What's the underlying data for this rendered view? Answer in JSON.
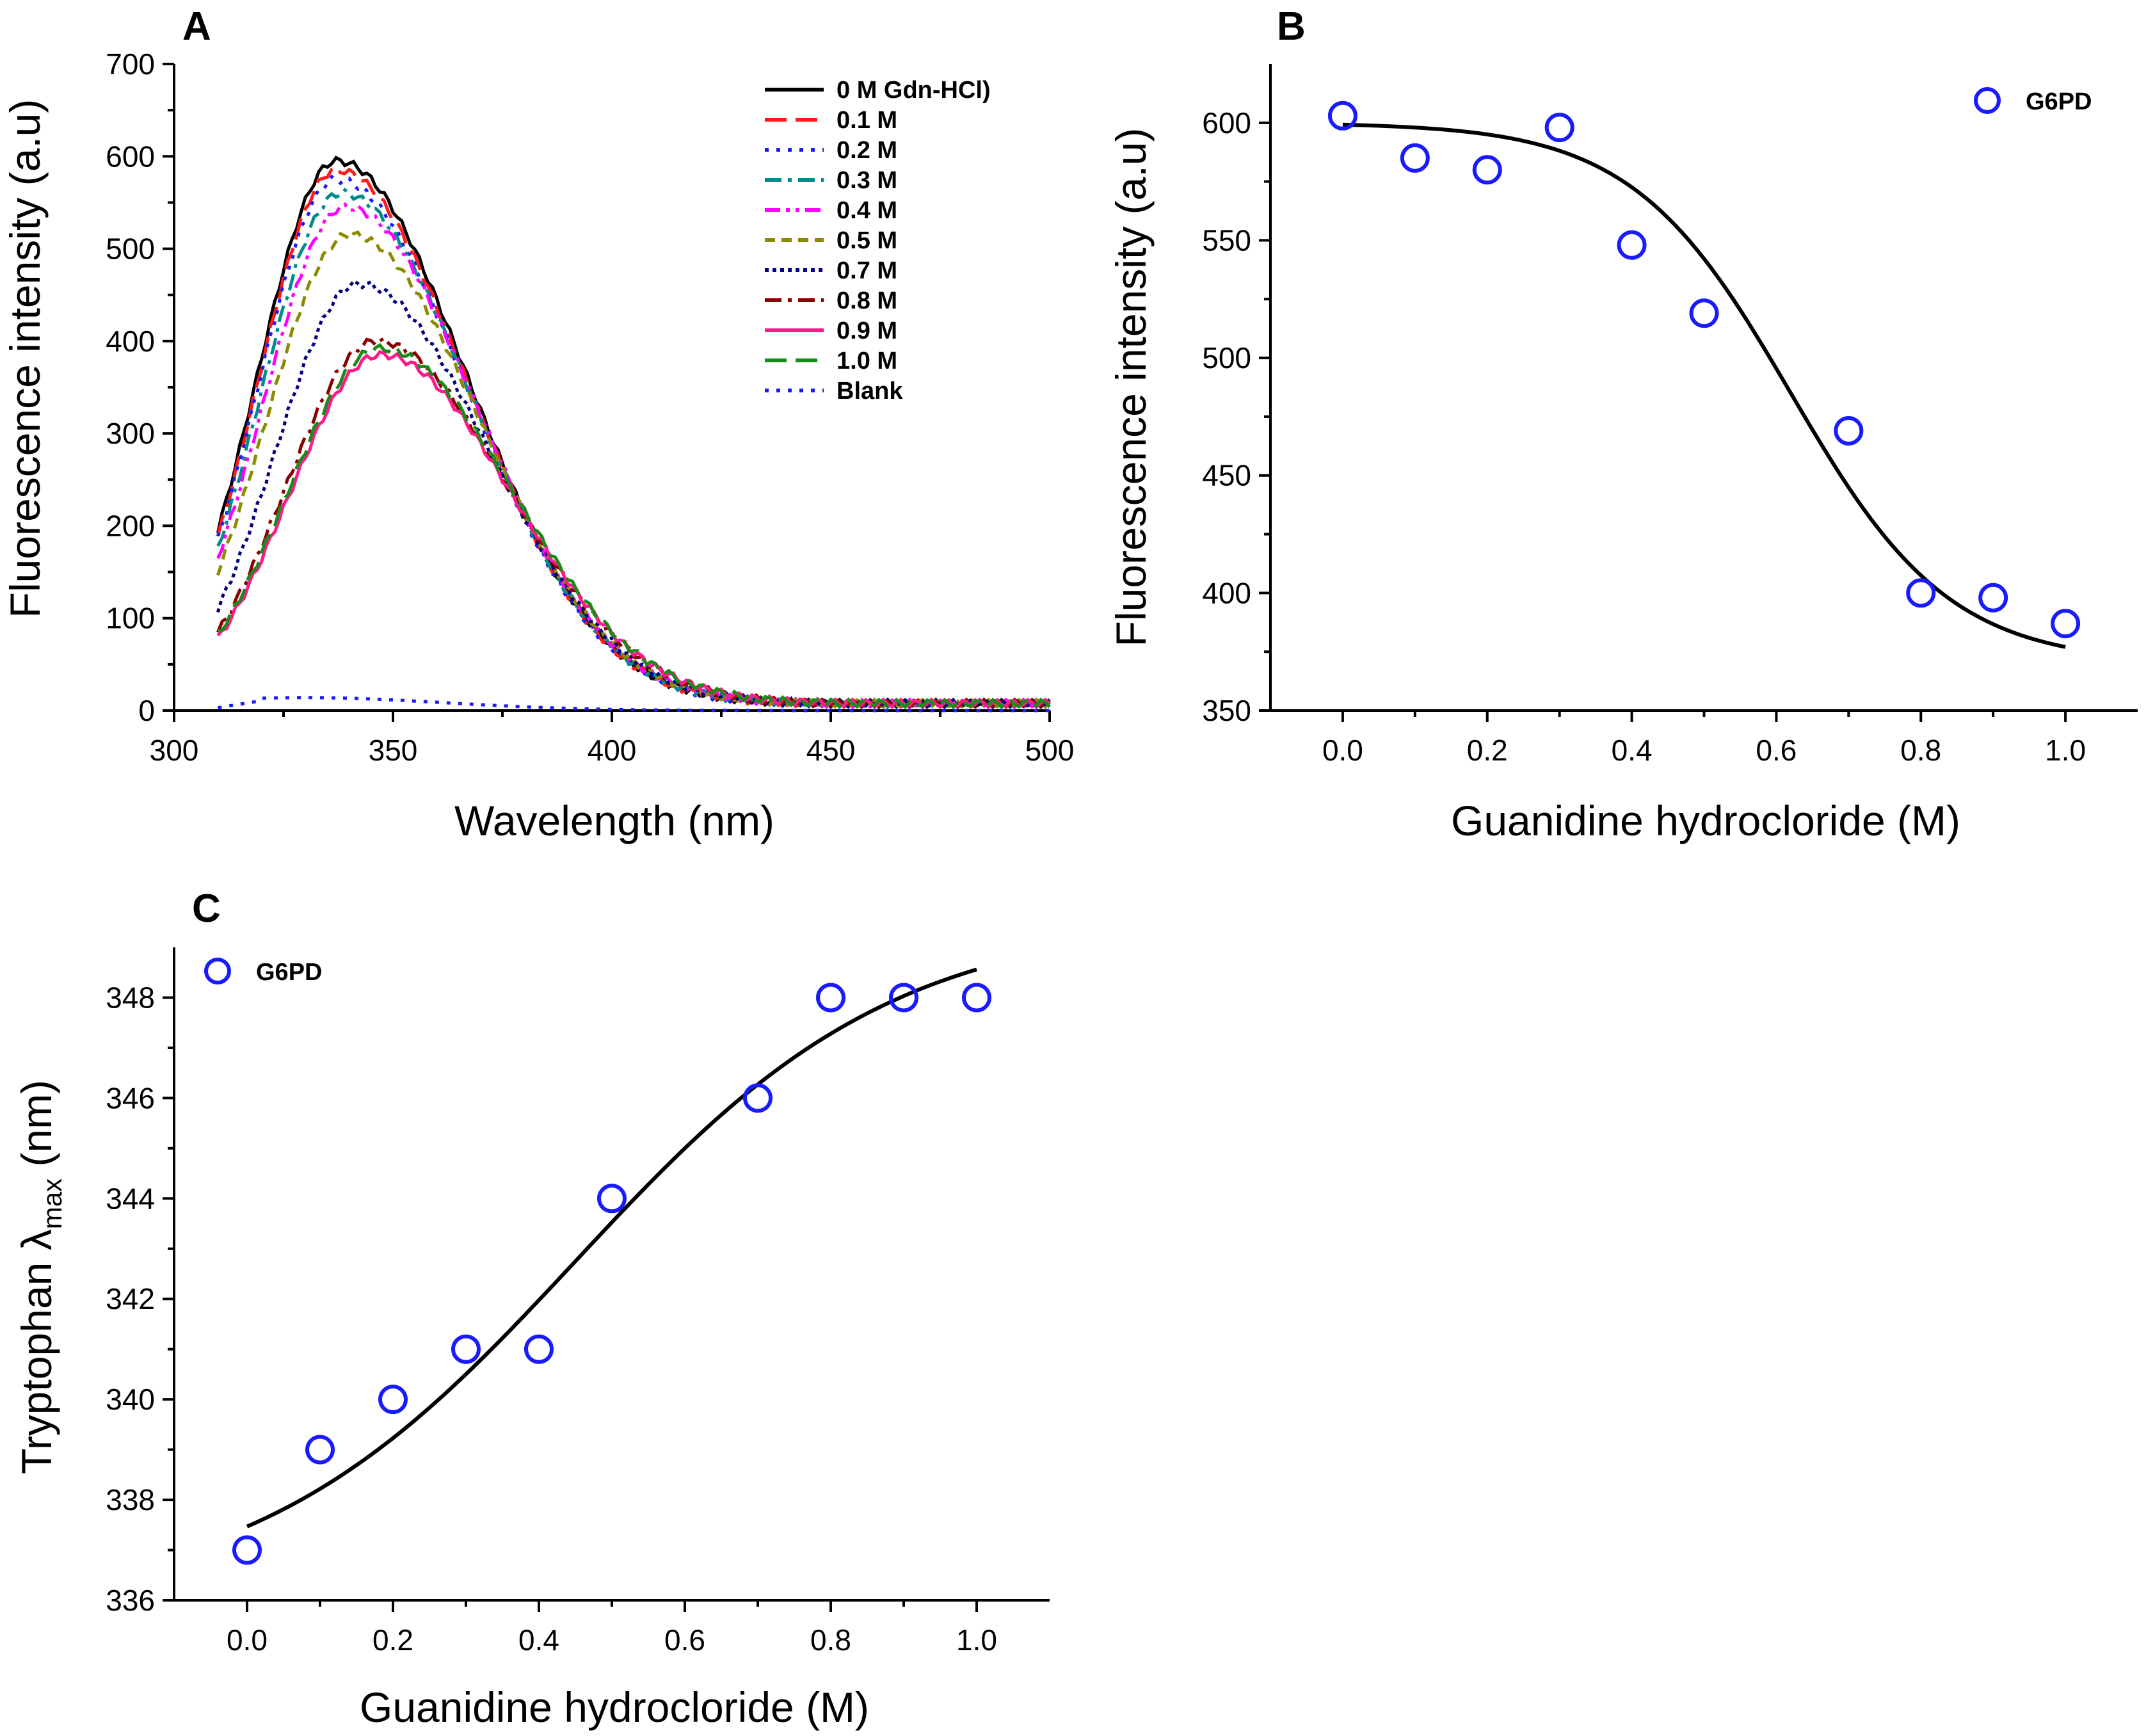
{
  "colors": {
    "axis": "#000000",
    "marker": "#1a1aff",
    "fit": "#000000"
  },
  "chart_data": [
    {
      "panel": "A",
      "type": "line",
      "title": "",
      "xlabel": "Wavelength (nm)",
      "ylabel": "Fluorescence intensity (a.u)",
      "xlim": [
        300,
        500
      ],
      "ylim": [
        0,
        700
      ],
      "xticks": [
        300,
        350,
        400,
        450,
        500
      ],
      "yticks": [
        0,
        100,
        200,
        300,
        400,
        500,
        600,
        700
      ],
      "xtick_labels": [
        "300",
        "350",
        "400",
        "450",
        "500"
      ],
      "ytick_labels": [
        "0",
        "100",
        "200",
        "300",
        "400",
        "500",
        "600",
        "700"
      ],
      "legend_position": "top-right",
      "series": [
        {
          "name": "0 M Gdn-HCl)",
          "color": "#000000",
          "dash": "solid",
          "start": 195,
          "peak": 595,
          "peak_x": 337
        },
        {
          "name": "0.1 M",
          "color": "#ff1a1a",
          "dash": "long-dash",
          "start": 188,
          "peak": 585,
          "peak_x": 337
        },
        {
          "name": "0.2 M",
          "color": "#1a1aff",
          "dash": "dot",
          "start": 185,
          "peak": 575,
          "peak_x": 337
        },
        {
          "name": "0.3 M",
          "color": "#008b8b",
          "dash": "dash-dot",
          "start": 175,
          "peak": 560,
          "peak_x": 338
        },
        {
          "name": "0.4 M",
          "color": "#ff00ff",
          "dash": "dash-dot-dot",
          "start": 165,
          "peak": 545,
          "peak_x": 339
        },
        {
          "name": "0.5 M",
          "color": "#8b8b00",
          "dash": "short-dash",
          "start": 150,
          "peak": 515,
          "peak_x": 340
        },
        {
          "name": "0.7 M",
          "color": "#000080",
          "dash": "short-dot",
          "start": 110,
          "peak": 462,
          "peak_x": 342
        },
        {
          "name": "0.8 M",
          "color": "#8b0000",
          "dash": "dash-dot",
          "start": 85,
          "peak": 400,
          "peak_x": 346
        },
        {
          "name": "0.9 M",
          "color": "#ff1a8c",
          "dash": "solid",
          "start": 78,
          "peak": 385,
          "peak_x": 347
        },
        {
          "name": "1.0 M",
          "color": "#1a8b1a",
          "dash": "long-dash",
          "start": 82,
          "peak": 392,
          "peak_x": 347
        },
        {
          "name": "Blank",
          "color": "#1a1aff",
          "dash": "dot",
          "start": 3,
          "peak": 14,
          "peak_x": 330
        }
      ]
    },
    {
      "panel": "B",
      "type": "scatter",
      "title": "",
      "xlabel": "Guanidine hydrocloride (M)",
      "ylabel": "Fluorescence intensity (a.u)",
      "xlim": [
        -0.1,
        1.1
      ],
      "ylim": [
        350,
        625
      ],
      "xticks": [
        0.0,
        0.2,
        0.4,
        0.6,
        0.8,
        1.0
      ],
      "yticks": [
        350,
        400,
        450,
        500,
        550,
        600
      ],
      "xtick_labels": [
        "0.0",
        "0.2",
        "0.4",
        "0.6",
        "0.8",
        "1.0"
      ],
      "ytick_labels": [
        "350",
        "400",
        "450",
        "500",
        "550",
        "600"
      ],
      "legend_position": "top-right",
      "legend": [
        "G6PD"
      ],
      "x": [
        0.0,
        0.1,
        0.2,
        0.3,
        0.4,
        0.5,
        0.7,
        0.8,
        0.9,
        1.0
      ],
      "y": [
        603,
        585,
        580,
        598,
        548,
        519,
        469,
        400,
        398,
        387
      ],
      "fit": {
        "type": "sigmoid",
        "top": 600,
        "bottom": 370,
        "mid": 0.62,
        "slope": 0.11
      }
    },
    {
      "panel": "C",
      "type": "scatter",
      "title": "",
      "xlabel": "Guanidine hydrocloride (M)",
      "ylabel_main": "Tryptophan λ",
      "ylabel_sub": "max",
      "ylabel_tail": " (nm)",
      "xlim": [
        -0.1,
        1.1
      ],
      "ylim": [
        336,
        349
      ],
      "xticks": [
        0.0,
        0.2,
        0.4,
        0.6,
        0.8,
        1.0
      ],
      "yticks": [
        336,
        338,
        340,
        342,
        344,
        346,
        348
      ],
      "xtick_labels": [
        "0.0",
        "0.2",
        "0.4",
        "0.6",
        "0.8",
        "1.0"
      ],
      "ytick_labels": [
        "336",
        "338",
        "340",
        "342",
        "344",
        "346",
        "348"
      ],
      "legend_position": "top-left",
      "legend": [
        "G6PD"
      ],
      "x": [
        0.0,
        0.1,
        0.2,
        0.3,
        0.4,
        0.5,
        0.7,
        0.8,
        0.9,
        1.0
      ],
      "y": [
        337,
        339,
        340,
        341,
        341,
        344,
        346,
        348,
        348,
        348
      ],
      "fit": {
        "type": "sigmoid",
        "top": 349.6,
        "bottom": 335.9,
        "mid": 0.45,
        "slope": 0.22
      }
    }
  ]
}
